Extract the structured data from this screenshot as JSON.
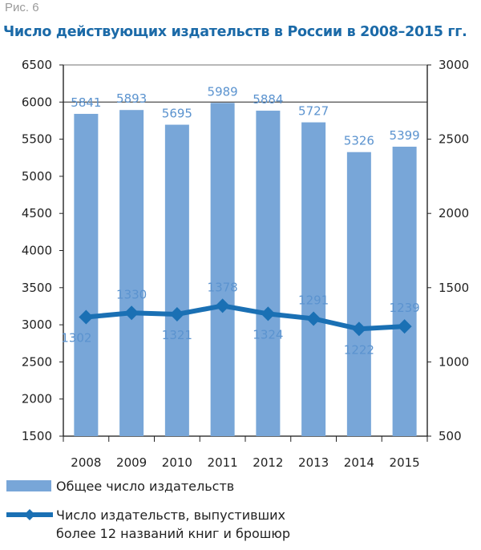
{
  "figure_label": "Рис. 6",
  "chart_data": {
    "type": "bar+line",
    "title": "Число действующих издательств в России в 2008–2015 гг.",
    "categories": [
      "2008",
      "2009",
      "2010",
      "2011",
      "2012",
      "2013",
      "2014",
      "2015"
    ],
    "series": [
      {
        "name": "Общее число издательств",
        "type": "bar",
        "axis": "left",
        "values": [
          5841,
          5893,
          5695,
          5989,
          5884,
          5727,
          5326,
          5399
        ],
        "color": "#78a6d8"
      },
      {
        "name": "Число издательств, выпустивших более 12 названий книг и брошюр",
        "type": "line",
        "axis": "right",
        "values": [
          1302,
          1330,
          1321,
          1378,
          1324,
          1291,
          1222,
          1239
        ],
        "color": "#1a70b4",
        "marker": "diamond"
      }
    ],
    "left_axis": {
      "ylim": [
        1500,
        6500
      ],
      "ticks": [
        1500,
        2000,
        2500,
        3000,
        3500,
        4000,
        4500,
        5000,
        5500,
        6000,
        6500
      ]
    },
    "right_axis": {
      "ylim": [
        500,
        3000
      ],
      "ticks": [
        500,
        1000,
        1500,
        2000,
        2500,
        3000
      ]
    },
    "grid": "horizontal at 6000 only",
    "label_color": "#5b93cf",
    "legend_position": "bottom",
    "legend": [
      "Общее число издательств",
      "Число издательств, выпустивших",
      "более 12 названий книг и брошюр"
    ]
  }
}
